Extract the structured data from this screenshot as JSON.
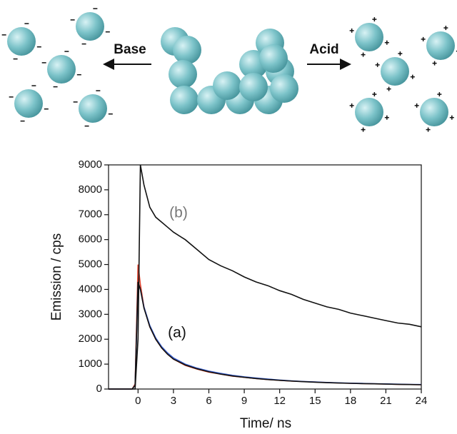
{
  "diagram": {
    "labels": [
      "Base",
      "Acid"
    ]
  },
  "chart_data": {
    "type": "line",
    "xlabel": "Time/ ns",
    "ylabel": "Emission / cps",
    "annotations": [
      "(b)",
      "(a)"
    ],
    "x": [
      -2.5,
      -1,
      -0.5,
      -0.25,
      0,
      0.2,
      0.5,
      1,
      1.5,
      2,
      2.5,
      3,
      4,
      5,
      6,
      7,
      8,
      9,
      10,
      11,
      12,
      13,
      14,
      15,
      16,
      17,
      18,
      19,
      20,
      21,
      22,
      23,
      24
    ],
    "series": [
      {
        "color": "#e0402a",
        "values": [
          0,
          0,
          0,
          200,
          5000,
          4200,
          3300,
          2500,
          2000,
          1650,
          1400,
          1200,
          950,
          800,
          680,
          600,
          520,
          470,
          420,
          380,
          350,
          320,
          300,
          280,
          260,
          245,
          230,
          220,
          210,
          200,
          190,
          180,
          175
        ]
      },
      {
        "color": "#3a5fd0",
        "values": [
          0,
          0,
          0,
          150,
          4300,
          4000,
          3300,
          2550,
          2050,
          1700,
          1450,
          1250,
          1000,
          840,
          720,
          630,
          550,
          490,
          440,
          400,
          360,
          330,
          305,
          285,
          265,
          250,
          235,
          225,
          215,
          205,
          195,
          185,
          180
        ]
      },
      {
        "color": "#111111",
        "values": [
          0,
          0,
          0,
          150,
          4300,
          4000,
          3250,
          2500,
          2000,
          1650,
          1400,
          1200,
          970,
          810,
          690,
          600,
          525,
          470,
          420,
          380,
          350,
          320,
          295,
          275,
          255,
          240,
          228,
          218,
          208,
          198,
          188,
          180,
          172
        ]
      },
      {
        "color": "#111111",
        "values": [
          0,
          0,
          0,
          0,
          2000,
          9000,
          8200,
          7300,
          6900,
          6700,
          6500,
          6300,
          6000,
          5600,
          5200,
          4950,
          4750,
          4500,
          4300,
          4150,
          3950,
          3800,
          3600,
          3450,
          3300,
          3200,
          3050,
          2950,
          2850,
          2750,
          2650,
          2600,
          2500
        ]
      }
    ],
    "xlim": [
      -2.5,
      24
    ],
    "ylim": [
      0,
      9000
    ],
    "xticks": [
      0,
      3,
      6,
      9,
      12,
      15,
      18,
      21,
      24
    ],
    "yticks": [
      0,
      1000,
      2000,
      3000,
      4000,
      5000,
      6000,
      7000,
      8000,
      9000
    ]
  }
}
